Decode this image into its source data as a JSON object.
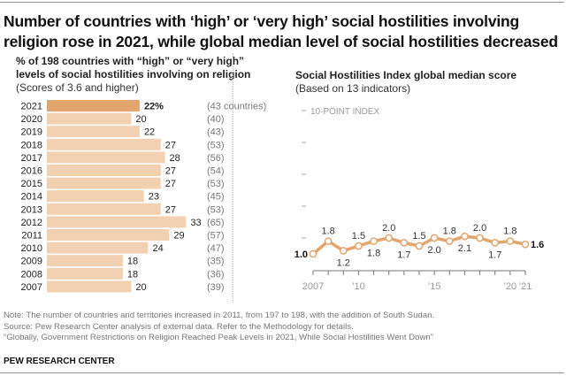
{
  "title": "Number of countries with ‘high’ or ‘very high’ social hostilities involving religion rose in 2021, while global median level of social hostilities decreased",
  "left_panel": {
    "subtitle_line1": "% of 198 countries with “high” or “very high”",
    "subtitle_line2": "levels of social hostilities involving on religion",
    "subtitle_note": "(Scores of 3.6 and higher)"
  },
  "right_panel": {
    "subtitle": "Social Hostilities Index global median score",
    "subtitle_note": "(Based on 13 indicators)"
  },
  "colors": {
    "highlight_bar": "#E3A56E",
    "bar": "#F2D1B2",
    "line": "#E3A56E",
    "axis": "#888888"
  },
  "chart_data": [
    {
      "type": "bar",
      "orientation": "horizontal",
      "title": "% of 198 countries with “high” or “very high” levels of social hostilities involving on religion",
      "subtitle": "(Scores of 3.6 and higher)",
      "categories": [
        "2021",
        "2020",
        "2019",
        "2018",
        "2017",
        "2016",
        "2015",
        "2014",
        "2013",
        "2012",
        "2011",
        "2010",
        "2009",
        "2008",
        "2007"
      ],
      "values": [
        22,
        20,
        22,
        27,
        28,
        27,
        27,
        23,
        27,
        33,
        29,
        24,
        18,
        18,
        20
      ],
      "value_labels": [
        "22%",
        "20",
        "22",
        "27",
        "28",
        "27",
        "27",
        "23",
        "27",
        "33",
        "29",
        "24",
        "18",
        "18",
        "20"
      ],
      "counts": [
        43,
        40,
        43,
        53,
        56,
        54,
        53,
        45,
        53,
        65,
        57,
        47,
        35,
        36,
        39
      ],
      "count_labels": [
        "(43 countries)",
        "(40)",
        "(43)",
        "(53)",
        "(56)",
        "(54)",
        "(53)",
        "(45)",
        "(53)",
        "(65)",
        "(57)",
        "(47)",
        "(35)",
        "(36)",
        "(39)"
      ],
      "highlight": "2021",
      "xlim": [
        0,
        35
      ],
      "grid": false
    },
    {
      "type": "line",
      "title": "Social Hostilities Index global median score",
      "subtitle": "(Based on 13 indicators)",
      "x": [
        2007,
        2008,
        2009,
        2010,
        2011,
        2012,
        2013,
        2014,
        2015,
        2016,
        2017,
        2018,
        2019,
        2020,
        2021
      ],
      "values": [
        1.0,
        1.8,
        1.2,
        1.5,
        1.8,
        2.0,
        1.7,
        1.5,
        2.0,
        1.8,
        2.1,
        2.0,
        1.7,
        1.8,
        1.6
      ],
      "value_labels": [
        "1.0",
        "1.8",
        "1.2",
        "1.5",
        "1.8",
        "2.0",
        "1.7",
        "1.5",
        "2.0",
        "1.8",
        "2.1",
        "2.0",
        "1.7",
        "1.8",
        "1.6"
      ],
      "label_positions": [
        "left",
        "above",
        "below",
        "above",
        "below",
        "above",
        "below",
        "above",
        "below",
        "above",
        "below",
        "above",
        "below",
        "above",
        "right"
      ],
      "x_tick_labels": [
        {
          "x": 2007,
          "label": "2007"
        },
        {
          "x": 2010,
          "label": "’10"
        },
        {
          "x": 2015,
          "label": "’15"
        },
        {
          "x": 2020,
          "label": "’20"
        },
        {
          "x": 2021,
          "label": "’21"
        }
      ],
      "y_ticks": [
        0,
        2,
        4,
        6,
        8,
        10
      ],
      "y_top_label": "10-POINT INDEX",
      "ylim": [
        0,
        10
      ],
      "xlim": [
        2007,
        2021
      ],
      "grid": false
    }
  ],
  "footer": {
    "note": "Note: The number of countries and territories increased in 2011, from 197 to 198, with the addition of South Sudan.",
    "source": "Source: Pew Research Center analysis of external data. Refer to the Methodology for details.",
    "report": "“Globally, Government Restrictions on Religion Reached Peak Levels in 2021, While Social Hostilities Went Down”",
    "brand": "PEW RESEARCH CENTER"
  }
}
